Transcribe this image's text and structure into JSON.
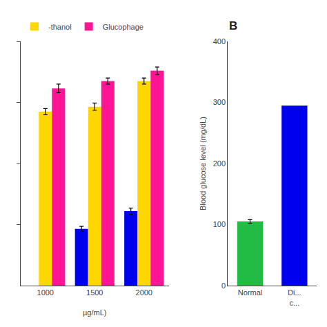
{
  "chart_data": [
    {
      "type": "bar",
      "categories": [
        "1000",
        "1500",
        "2000"
      ],
      "xlabel": "µg/mL)",
      "series": [
        {
          "color": "#0000EE",
          "values": [
            null,
            93,
            122
          ],
          "errors": [
            null,
            4,
            5
          ]
        },
        {
          "name": "-thanol",
          "color": "#FFD700",
          "values": [
            285,
            293,
            335
          ],
          "errors": [
            5,
            6,
            5
          ]
        },
        {
          "name": "Glucophage",
          "color": "#FF1493",
          "values": [
            323,
            335,
            352
          ],
          "errors": [
            7,
            5,
            6
          ]
        }
      ],
      "ylim": [
        0,
        400
      ],
      "yticks": [
        100,
        200,
        300,
        400
      ],
      "tick_labels": "x",
      "grid": false,
      "legend": "upper left"
    },
    {
      "type": "bar",
      "title": "B",
      "categories": [
        "Normal",
        "Di...\nc..."
      ],
      "values": [
        105,
        295
      ],
      "errors": [
        3,
        0
      ],
      "colors": [
        "#22BB44",
        "#0000EE"
      ],
      "ylabel": "Blood glucose level (mg/dL)",
      "ylim": [
        0,
        400
      ],
      "yticks": [
        0,
        100,
        200,
        300,
        400
      ],
      "grid": false
    }
  ]
}
